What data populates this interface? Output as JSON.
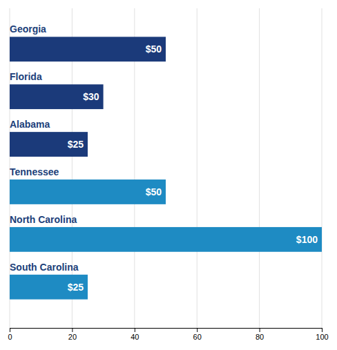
{
  "chart_data": {
    "type": "bar",
    "orientation": "horizontal",
    "categories": [
      "Georgia",
      "Florida",
      "Alabama",
      "Tennessee",
      "North Carolina",
      "South Carolina"
    ],
    "values": [
      50,
      30,
      25,
      50,
      100,
      25
    ],
    "value_labels": [
      "$50",
      "$30",
      "$25",
      "$50",
      "$100",
      "$25"
    ],
    "colors": [
      "#1b3a7a",
      "#1b3a7a",
      "#1b3a7a",
      "#1e8bc3",
      "#1e8bc3",
      "#1e8bc3"
    ],
    "xlim": [
      0,
      100
    ],
    "xticks": [
      0,
      20,
      40,
      60,
      80,
      100
    ],
    "grid": true,
    "data_labels": true
  }
}
